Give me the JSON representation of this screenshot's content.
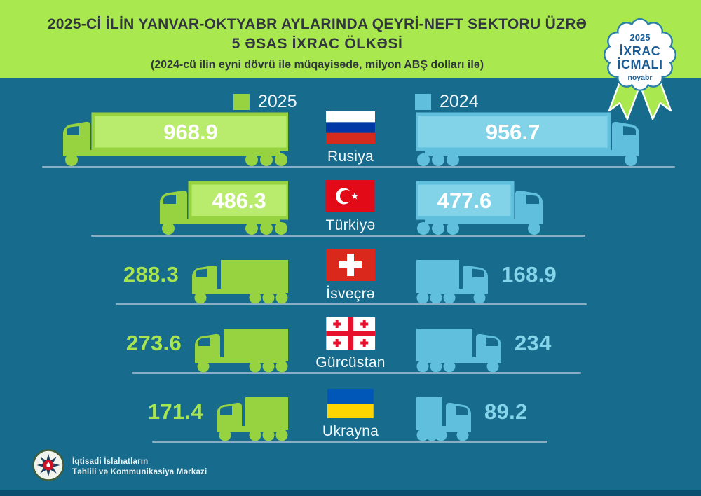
{
  "header": {
    "title_line1": "2025-Cİ İLİN YANVAR-OKTYABR AYLARINDA QEYRİ-NEFT SEKTORU ÜZRƏ",
    "title_line2": "5 ƏSAS İXRAC ÖLKƏSİ",
    "subtitle": "(2024-cü ilin eyni dövrü ilə müqayisədə, milyon ABŞ dolları ilə)"
  },
  "badge": {
    "year": "2025",
    "line1": "İXRAC",
    "line2": "İCMALI",
    "month": "noyabr"
  },
  "legend": {
    "items": [
      {
        "label": "2025",
        "color": "#97D341"
      },
      {
        "label": "2024",
        "color": "#5FBFDC"
      }
    ]
  },
  "rows": [
    {
      "country": "Rusiya",
      "flag": "russia",
      "v2025": "968.9",
      "v2024": "956.7"
    },
    {
      "country": "Türkiyə",
      "flag": "turkey",
      "v2025": "486.3",
      "v2024": "477.6"
    },
    {
      "country": "İsveçrə",
      "flag": "switzerland",
      "v2025": "288.3",
      "v2024": "168.9"
    },
    {
      "country": "Gürcüstan",
      "flag": "georgia",
      "v2025": "273.6",
      "v2024": "234"
    },
    {
      "country": "Ukrayna",
      "flag": "ukraine",
      "v2025": "171.4",
      "v2024": "89.2"
    }
  ],
  "footer": {
    "org_line1": "İqtisadi İslahatların",
    "org_line2": "Təhlili və Kommunikasiya Mərkəzi"
  },
  "colors": {
    "header_bg": "#A9E84E",
    "background": "#176B8D",
    "green_2025": "#97D341",
    "green_light": "#B9EC6C",
    "blue_2024": "#5FBFDC",
    "blue_light": "#82D3E8",
    "road_line": "#A4BFD2",
    "badge_text": "#1D5D94",
    "bottom_strip": "#0B4F70"
  },
  "chart_data": {
    "type": "bar",
    "title": "2025-ci ilin yanvar-oktyabr aylarında qeyri-neft sektoru üzrə 5 əsas ixrac ölkəsi",
    "subtitle": "(2024-cü ilin eyni dövrü ilə müqayisədə, milyon ABŞ dolları ilə)",
    "categories": [
      "Rusiya",
      "Türkiyə",
      "İsveçrə",
      "Gürcüstan",
      "Ukrayna"
    ],
    "series": [
      {
        "name": "2025",
        "values": [
          968.9,
          486.3,
          288.3,
          273.6,
          171.4
        ]
      },
      {
        "name": "2024",
        "values": [
          956.7,
          477.6,
          168.9,
          234,
          89.2
        ]
      }
    ],
    "unit": "milyon ABŞ dolları",
    "legend_position": "top",
    "orientation": "horizontal-mirrored",
    "grid": false
  }
}
